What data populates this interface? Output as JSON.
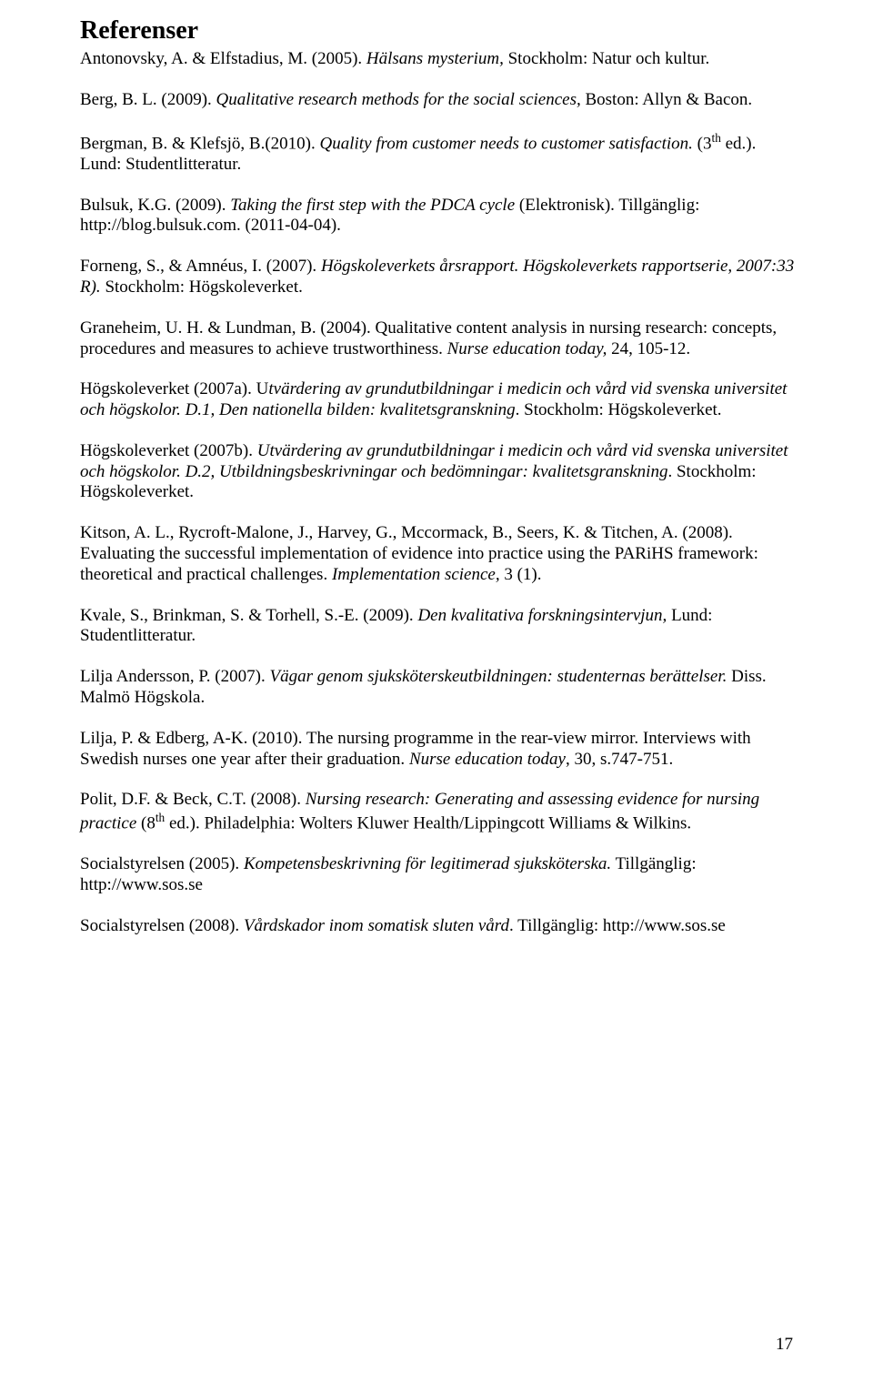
{
  "title": "Referenser",
  "refs": [
    [
      {
        "t": "Antonovsky, A. & Elfstadius, M. (2005). "
      },
      {
        "t": "Hälsans mysterium,",
        "i": true
      },
      {
        "t": " Stockholm: Natur och kultur."
      }
    ],
    [
      {
        "t": "Berg, B. L. (2009). "
      },
      {
        "t": "Qualitative research methods for the social sciences,",
        "i": true
      },
      {
        "t": " Boston: Allyn & Bacon."
      }
    ],
    [
      {
        "t": "Bergman, B. & Klefsjö, B.(2010). "
      },
      {
        "t": "Quality from customer needs to customer satisfaction.",
        "i": true
      },
      {
        "t": " (3"
      },
      {
        "t": "th",
        "sup": true
      },
      {
        "t": " ed.). Lund: Studentlitteratur."
      }
    ],
    [
      {
        "t": "Bulsuk, K.G. (2009). "
      },
      {
        "t": "Taking the first step with the PDCA cycle",
        "i": true
      },
      {
        "t": " (Elektronisk). Tillgänglig: http://blog.bulsuk.com. (2011-04-04)."
      }
    ],
    [
      {
        "t": "Forneng, S., & Amnéus, I. (2007). "
      },
      {
        "t": "Högskoleverkets årsrapport. Högskoleverkets rapportserie, 2007:33 R).",
        "i": true
      },
      {
        "t": " Stockholm: Högskoleverket."
      }
    ],
    [
      {
        "t": "Graneheim, U. H. & Lundman, B. (2004). Qualitative content analysis in nursing research: concepts, procedures and measures to achieve trustworthiness. "
      },
      {
        "t": "Nurse education today,",
        "i": true
      },
      {
        "t": " 24, 105-12."
      }
    ],
    [
      {
        "t": "Högskoleverket (2007a). U"
      },
      {
        "t": "tvärdering av grundutbildningar i medicin och vård vid svenska universitet och högskolor. D.1, Den nationella bilden: kvalitetsgranskning",
        "i": true
      },
      {
        "t": ". Stockholm: Högskoleverket."
      }
    ],
    [
      {
        "t": "Högskoleverket (2007b). "
      },
      {
        "t": "Utvärdering av grundutbildningar i medicin och vård vid svenska universitet och högskolor. D.2, Utbildningsbeskrivningar och bedömningar: kvalitetsgranskning",
        "i": true
      },
      {
        "t": ". Stockholm: Högskoleverket."
      }
    ],
    [
      {
        "t": "Kitson, A. L., Rycroft-Malone, J., Harvey, G., Mccormack, B., Seers, K. & Titchen, A. (2008). Evaluating the successful implementation of evidence into practice using the PARiHS framework: theoretical and practical challenges. "
      },
      {
        "t": "Implementation science,",
        "i": true
      },
      {
        "t": " 3 (1)."
      }
    ],
    [
      {
        "t": "Kvale, S., Brinkman, S. & Torhell, S.-E. (2009). "
      },
      {
        "t": "Den kvalitativa forskningsintervjun,",
        "i": true
      },
      {
        "t": " Lund: Studentlitteratur."
      }
    ],
    [
      {
        "t": "Lilja Andersson, P. (2007). "
      },
      {
        "t": "Vägar genom sjuksköterskeutbildningen: studenternas berättelser.",
        "i": true
      },
      {
        "t": " Diss. Malmö Högskola."
      }
    ],
    [
      {
        "t": "Lilja, P. & Edberg, A-K. (2010). The nursing programme in the rear-view mirror. Interviews with Swedish nurses one year after their graduation. "
      },
      {
        "t": "Nurse education today",
        "i": true
      },
      {
        "t": ", 30, s.747-751."
      }
    ],
    [
      {
        "t": "Polit, D.F. & Beck, C.T. (2008). "
      },
      {
        "t": "Nursing research: Generating and assessing evidence for nursing practice",
        "i": true
      },
      {
        "t": " (8"
      },
      {
        "t": "th",
        "sup": true
      },
      {
        "t": " ed.). Philadelphia: Wolters Kluwer Health/Lippingcott Williams & Wilkins."
      }
    ],
    [
      {
        "t": "Socialstyrelsen (2005). "
      },
      {
        "t": "Kompetensbeskrivning för legitimerad sjuksköterska.",
        "i": true
      },
      {
        "t": " Tillgänglig: http://www.sos.se"
      }
    ],
    [
      {
        "t": "Socialstyrelsen (2008). "
      },
      {
        "t": "Vårdskador inom somatisk sluten vård",
        "i": true
      },
      {
        "t": ". Tillgänglig: http://www.sos.se"
      }
    ]
  ],
  "page_number": "17"
}
